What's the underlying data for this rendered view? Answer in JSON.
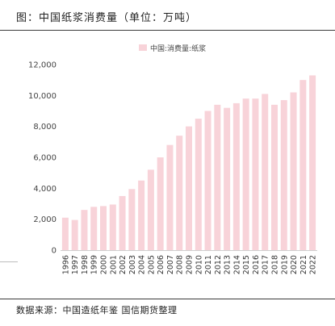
{
  "chart_data": {
    "type": "bar",
    "title": "图：中国纸浆消费量（单位：万吨）",
    "categories": [
      "1996",
      "1997",
      "1998",
      "1999",
      "2000",
      "2001",
      "2002",
      "2003",
      "2004",
      "2005",
      "2006",
      "2007",
      "2008",
      "2009",
      "2010",
      "2011",
      "2012",
      "2013",
      "2014",
      "2015",
      "2016",
      "2017",
      "2018",
      "2019",
      "2020",
      "2021",
      "2022"
    ],
    "series": [
      {
        "name": "中国:消费量:纸浆",
        "color": "#f8d3d9",
        "values": [
          2100,
          1950,
          2600,
          2800,
          2850,
          2950,
          3500,
          3950,
          4500,
          5200,
          6000,
          6800,
          7400,
          8000,
          8500,
          9000,
          9400,
          9200,
          9500,
          9800,
          9800,
          10100,
          9400,
          9700,
          10200,
          11000,
          11300
        ]
      }
    ],
    "xlabel": "",
    "ylabel": "",
    "ylim": [
      0,
      12000
    ],
    "yticks": [
      0,
      2000,
      4000,
      6000,
      8000,
      10000,
      12000
    ],
    "ytick_labels": [
      "0",
      "2,000",
      "4,000",
      "6,000",
      "8,000",
      "10,000",
      "12,000"
    ],
    "grid": false,
    "legend": "top-center"
  },
  "footer": {
    "source": "数据来源：中国造纸年鉴 国信期货整理"
  }
}
